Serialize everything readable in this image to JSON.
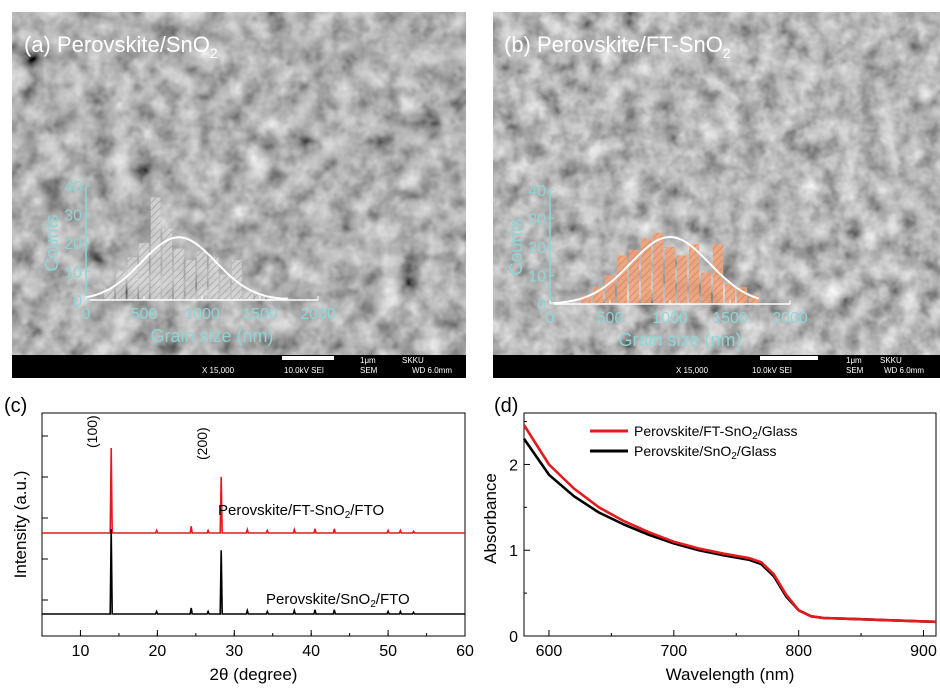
{
  "panels": {
    "a": {
      "label": "(a) Perovskite/SnO",
      "label_sub": "2",
      "inset_chart": {
        "type": "bar",
        "ylabel": "Counts",
        "xlabel": "Grain size (nm)",
        "xlim": [
          0,
          2000
        ],
        "ylim": [
          0,
          40
        ],
        "xticks": [
          0,
          500,
          1000,
          1500,
          2000
        ],
        "yticks": [
          0,
          10,
          20,
          30,
          40
        ],
        "x": [
          200,
          300,
          400,
          500,
          600,
          700,
          800,
          900,
          1000,
          1100,
          1200,
          1300,
          1400,
          1500,
          1600,
          1700
        ],
        "values": [
          4,
          10,
          15,
          20,
          36,
          25,
          18,
          14,
          17,
          15,
          9,
          14,
          3,
          2,
          1,
          1
        ],
        "fit": {
          "type": "gaussian",
          "center": 800,
          "sigma": 320,
          "peak": 22
        },
        "bar_color": "#e0e0e0",
        "fit_color": "#ffffff",
        "axis_color": "#8fd5d8"
      },
      "scale_bar": {
        "magnification": "X 15,000",
        "voltage": "10.0kV SEI",
        "scale": "1μm",
        "mode": "SEM",
        "institution": "SKKU",
        "wd": "WD 6.0mm"
      }
    },
    "b": {
      "label": "(b) Perovskite/FT-SnO",
      "label_sub": "2",
      "inset_chart": {
        "type": "bar",
        "ylabel": "Counts",
        "xlabel": "Grain size (nm)",
        "xlim": [
          0,
          2000
        ],
        "ylim": [
          0,
          40
        ],
        "xticks": [
          0,
          500,
          1000,
          1500,
          2000
        ],
        "yticks": [
          0,
          10,
          20,
          30,
          40
        ],
        "x": [
          300,
          400,
          500,
          600,
          700,
          800,
          900,
          1000,
          1100,
          1200,
          1300,
          1400,
          1500,
          1600,
          1700
        ],
        "values": [
          3,
          6,
          10,
          17,
          19,
          23,
          25,
          20,
          17,
          21,
          11,
          21,
          7,
          6,
          3
        ],
        "fit": {
          "type": "gaussian",
          "center": 1000,
          "sigma": 330,
          "peak": 23.5
        },
        "bar_color": "#f4a47a",
        "fit_color": "#ffffff",
        "axis_color": "#8fd5d8"
      },
      "scale_bar": {
        "magnification": "X 15,000",
        "voltage": "10.0kV SEI",
        "scale": "1μm",
        "mode": "SEM",
        "institution": "SKKU",
        "wd": "WD 6.0mm"
      }
    },
    "c": {
      "label": "(c)",
      "chart_data": {
        "type": "line",
        "xlabel": "2θ (degree)",
        "ylabel": "Intensity (a.u.)",
        "xlim": [
          5,
          60
        ],
        "xticks": [
          10,
          20,
          30,
          40,
          50,
          60
        ],
        "annotations": [
          {
            "text": "(100)",
            "x": 14
          },
          {
            "text": "(200)",
            "x": 28.3
          }
        ],
        "series": [
          {
            "name": "Perovskite/FT-SnO2/FTO",
            "name_main": "Perovskite/FT-SnO",
            "name_sub": "2",
            "name_tail": "/FTO",
            "color": "#e41a1c",
            "baseline": 0.62,
            "peaks": [
              [
                14.0,
                1.0
              ],
              [
                19.9,
                0.03
              ],
              [
                24.4,
                0.08
              ],
              [
                26.6,
                0.03
              ],
              [
                28.3,
                0.66
              ],
              [
                31.7,
                0.04
              ],
              [
                34.3,
                0.03
              ],
              [
                37.8,
                0.04
              ],
              [
                40.5,
                0.05
              ],
              [
                43.0,
                0.05
              ],
              [
                50.0,
                0.03
              ],
              [
                51.6,
                0.03
              ],
              [
                53.3,
                0.02
              ]
            ]
          },
          {
            "name": "Perovskite/SnO2/FTO",
            "name_main": "Perovskite/SnO",
            "name_sub": "2",
            "name_tail": "/FTO",
            "color": "#000000",
            "baseline": 0.0,
            "peaks": [
              [
                14.0,
                1.0
              ],
              [
                19.9,
                0.03
              ],
              [
                24.4,
                0.07
              ],
              [
                26.6,
                0.03
              ],
              [
                28.3,
                0.75
              ],
              [
                31.7,
                0.04
              ],
              [
                34.3,
                0.03
              ],
              [
                37.8,
                0.04
              ],
              [
                40.5,
                0.05
              ],
              [
                43.0,
                0.05
              ],
              [
                50.0,
                0.03
              ],
              [
                51.6,
                0.03
              ],
              [
                53.3,
                0.02
              ]
            ]
          }
        ]
      }
    },
    "d": {
      "label": "(d)",
      "chart_data": {
        "type": "line",
        "xlabel": "Wavelength (nm)",
        "ylabel": "Absorbance",
        "xlim": [
          580,
          910
        ],
        "ylim": [
          0,
          2.6
        ],
        "xticks": [
          600,
          700,
          800,
          900
        ],
        "yticks": [
          0,
          1,
          2
        ],
        "legend_position": "top-right",
        "series": [
          {
            "name": "Perovskite/FT-SnO2/Glass",
            "name_main": "Perovskite/FT-SnO",
            "name_sub": "2",
            "name_tail": "/Glass",
            "color": "#e41a1c",
            "x": [
              580,
              600,
              620,
              640,
              660,
              680,
              700,
              720,
              740,
              760,
              770,
              780,
              790,
              800,
              810,
              820,
              840,
              860,
              880,
              900,
              910
            ],
            "y": [
              2.46,
              2.0,
              1.72,
              1.5,
              1.34,
              1.21,
              1.1,
              1.02,
              0.96,
              0.91,
              0.86,
              0.72,
              0.48,
              0.3,
              0.23,
              0.21,
              0.2,
              0.19,
              0.18,
              0.17,
              0.165
            ]
          },
          {
            "name": "Perovskite/SnO2/Glass",
            "name_main": "Perovskite/SnO",
            "name_sub": "2",
            "name_tail": "/Glass",
            "color": "#000000",
            "x": [
              580,
              600,
              620,
              640,
              660,
              680,
              700,
              720,
              740,
              760,
              770,
              780,
              790,
              800,
              810,
              820,
              840,
              860,
              880,
              900,
              910
            ],
            "y": [
              2.3,
              1.88,
              1.63,
              1.44,
              1.3,
              1.18,
              1.08,
              1.0,
              0.94,
              0.89,
              0.84,
              0.7,
              0.46,
              0.3,
              0.23,
              0.21,
              0.2,
              0.19,
              0.18,
              0.17,
              0.165
            ]
          }
        ]
      }
    }
  }
}
